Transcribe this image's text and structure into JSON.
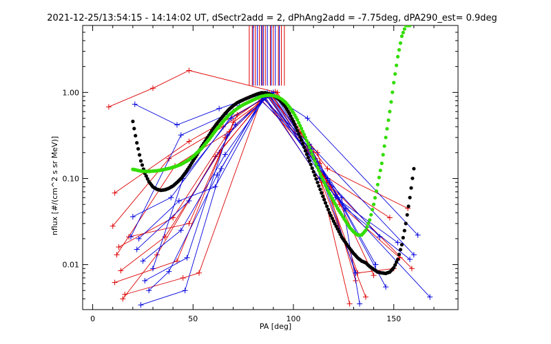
{
  "chart_data": {
    "type": "line",
    "title": "2021-12-25/13:54:15 - 14:14:02 UT, dSectr2add = 2, dPhAng2add = -7.75deg, dPA290_est=   0.9deg",
    "xlabel": "PA [deg]",
    "ylabel": "nflux [#/(cm^2 s sr MeV)]",
    "xlim": [
      -5,
      182
    ],
    "ylim": [
      0.003,
      6.0
    ],
    "yscale": "log",
    "grid": false,
    "x_ticks": [
      {
        "v": 0,
        "label": "0"
      },
      {
        "v": 50,
        "label": "50"
      },
      {
        "v": 100,
        "label": "100"
      },
      {
        "v": 150,
        "label": "150"
      }
    ],
    "y_ticks": [
      {
        "v": 0.01,
        "label": "0.01"
      },
      {
        "v": 0.1,
        "label": "0.10"
      },
      {
        "v": 1.0,
        "label": "1.00"
      }
    ],
    "colors": {
      "red": "#dd0000",
      "blue": "#0000dd",
      "black": "#000000",
      "green": "#33dd00"
    },
    "vertical_lines": {
      "y_from": 1.2,
      "red_x": [
        78.0,
        79.5,
        81.0,
        83.0,
        84.5,
        86.0,
        88.5,
        90.0,
        92.5,
        94.0,
        95.5
      ],
      "blue_x": [
        80.0,
        82.0,
        84.0,
        85.0,
        87.0,
        89.0,
        91.0,
        93.0
      ]
    },
    "series": [
      {
        "color": "red",
        "x": [
          8,
          30,
          48,
          92,
          113
        ],
        "y": [
          0.68,
          1.12,
          1.8,
          1.0,
          0.15
        ]
      },
      {
        "color": "red",
        "x": [
          11,
          48,
          88,
          112,
          131
        ],
        "y": [
          0.068,
          0.27,
          0.92,
          0.2,
          0.0065
        ]
      },
      {
        "color": "red",
        "x": [
          10,
          38,
          65,
          88,
          117,
          157
        ],
        "y": [
          0.028,
          0.17,
          0.4,
          0.98,
          0.13,
          0.045
        ]
      },
      {
        "color": "red",
        "x": [
          13,
          40,
          66,
          87,
          115,
          148
        ],
        "y": [
          0.016,
          0.035,
          0.3,
          0.92,
          0.11,
          0.035
        ]
      },
      {
        "color": "red",
        "x": [
          14,
          36,
          63,
          85,
          110,
          132,
          150
        ],
        "y": [
          0.0085,
          0.021,
          0.2,
          0.85,
          0.2,
          0.008,
          0.009
        ]
      },
      {
        "color": "red",
        "x": [
          11,
          42,
          70,
          89,
          121,
          140
        ],
        "y": [
          0.0062,
          0.011,
          0.45,
          0.95,
          0.065,
          0.0075
        ]
      },
      {
        "color": "red",
        "x": [
          15,
          32,
          61,
          86,
          114,
          136
        ],
        "y": [
          0.004,
          0.013,
          0.18,
          0.88,
          0.09,
          0.0042
        ]
      },
      {
        "color": "red",
        "x": [
          16,
          45,
          53,
          84,
          111,
          128
        ],
        "y": [
          0.0045,
          0.007,
          0.008,
          0.82,
          0.17,
          0.0035
        ]
      },
      {
        "color": "red",
        "x": [
          18,
          48,
          72,
          91,
          123,
          153
        ],
        "y": [
          0.021,
          0.03,
          0.55,
          1.02,
          0.05,
          0.012
        ]
      },
      {
        "color": "red",
        "x": [
          12,
          41,
          68,
          87,
          119,
          159
        ],
        "y": [
          0.013,
          0.14,
          0.35,
          0.96,
          0.08,
          0.009
        ]
      },
      {
        "color": "blue",
        "x": [
          21,
          42,
          63,
          87,
          107,
          162
        ],
        "y": [
          0.73,
          0.42,
          0.65,
          1.0,
          0.5,
          0.022
        ]
      },
      {
        "color": "blue",
        "x": [
          19,
          44,
          70,
          86,
          118,
          143
        ],
        "y": [
          0.021,
          0.32,
          0.6,
          0.97,
          0.09,
          0.021
        ]
      },
      {
        "color": "blue",
        "x": [
          22,
          48,
          71,
          88,
          121,
          152
        ],
        "y": [
          0.015,
          0.055,
          0.42,
          0.92,
          0.06,
          0.018
        ]
      },
      {
        "color": "blue",
        "x": [
          25,
          44,
          66,
          86,
          112,
          131
        ],
        "y": [
          0.011,
          0.025,
          0.19,
          0.86,
          0.14,
          0.008
        ]
      },
      {
        "color": "blue",
        "x": [
          28,
          38,
          62,
          84,
          109,
          146
        ],
        "y": [
          0.005,
          0.0083,
          0.11,
          0.8,
          0.22,
          0.0055
        ]
      },
      {
        "color": "blue",
        "x": [
          24,
          46,
          64,
          85,
          113,
          168
        ],
        "y": [
          0.0034,
          0.005,
          0.13,
          0.9,
          0.1,
          0.0042
        ]
      },
      {
        "color": "blue",
        "x": [
          20,
          39,
          73,
          90,
          126,
          158
        ],
        "y": [
          0.036,
          0.06,
          0.7,
          1.0,
          0.045,
          0.0115
        ]
      },
      {
        "color": "blue",
        "x": [
          26,
          47,
          67,
          88,
          117,
          141
        ],
        "y": [
          0.0065,
          0.012,
          0.32,
          0.95,
          0.1,
          0.01
        ]
      },
      {
        "color": "blue",
        "x": [
          30,
          45,
          69,
          89,
          124,
          133
        ],
        "y": [
          0.009,
          0.1,
          0.5,
          0.98,
          0.06,
          0.0035
        ]
      },
      {
        "color": "blue",
        "x": [
          23,
          43,
          61,
          85,
          108,
          160
        ],
        "y": [
          0.02,
          0.055,
          0.08,
          0.85,
          0.25,
          0.013
        ]
      }
    ],
    "fit_black": {
      "x": [
        20,
        22,
        24,
        26,
        28,
        30,
        32,
        34,
        36,
        38,
        40,
        42,
        44,
        46,
        48,
        50,
        52,
        54,
        56,
        58,
        60,
        62,
        64,
        66,
        68,
        70,
        72,
        74,
        76,
        78,
        80,
        82,
        84,
        86,
        88,
        90,
        92,
        94,
        96,
        98,
        100,
        102,
        104,
        106,
        108,
        110,
        112,
        114,
        116,
        118,
        120,
        122,
        124,
        126,
        128,
        130,
        132,
        134,
        136,
        138,
        140,
        142,
        144,
        146,
        148,
        150,
        152,
        154,
        156,
        158,
        160
      ],
      "y": [
        0.46,
        0.26,
        0.16,
        0.115,
        0.092,
        0.08,
        0.075,
        0.073,
        0.074,
        0.077,
        0.082,
        0.09,
        0.1,
        0.115,
        0.135,
        0.16,
        0.19,
        0.23,
        0.27,
        0.32,
        0.38,
        0.44,
        0.5,
        0.57,
        0.64,
        0.7,
        0.76,
        0.8,
        0.84,
        0.88,
        0.92,
        0.96,
        0.99,
        0.99,
        0.96,
        0.92,
        0.86,
        0.78,
        0.68,
        0.57,
        0.46,
        0.36,
        0.28,
        0.21,
        0.16,
        0.12,
        0.09,
        0.068,
        0.052,
        0.04,
        0.032,
        0.026,
        0.021,
        0.018,
        0.0155,
        0.0135,
        0.012,
        0.011,
        0.0105,
        0.0095,
        0.0088,
        0.0082,
        0.008,
        0.0079,
        0.0082,
        0.0092,
        0.0115,
        0.017,
        0.03,
        0.06,
        0.13
      ]
    },
    "fit_green": {
      "x": [
        20,
        22,
        24,
        26,
        28,
        30,
        32,
        34,
        36,
        38,
        40,
        42,
        44,
        46,
        48,
        50,
        52,
        54,
        56,
        58,
        60,
        62,
        64,
        66,
        68,
        70,
        72,
        74,
        76,
        78,
        80,
        82,
        84,
        86,
        88,
        90,
        92,
        94,
        96,
        98,
        100,
        102,
        104,
        106,
        108,
        110,
        112,
        114,
        116,
        118,
        120,
        122,
        124,
        126,
        128,
        130,
        132,
        134,
        136,
        138,
        140,
        142,
        144,
        146,
        148,
        150,
        152,
        154,
        156,
        158
      ],
      "y": [
        0.128,
        0.125,
        0.122,
        0.121,
        0.121,
        0.122,
        0.123,
        0.125,
        0.128,
        0.131,
        0.135,
        0.14,
        0.146,
        0.155,
        0.165,
        0.18,
        0.2,
        0.22,
        0.25,
        0.285,
        0.33,
        0.38,
        0.43,
        0.49,
        0.55,
        0.6,
        0.65,
        0.7,
        0.74,
        0.78,
        0.82,
        0.86,
        0.9,
        0.92,
        0.93,
        0.92,
        0.89,
        0.84,
        0.77,
        0.68,
        0.58,
        0.48,
        0.38,
        0.3,
        0.23,
        0.175,
        0.135,
        0.105,
        0.083,
        0.067,
        0.055,
        0.045,
        0.038,
        0.032,
        0.027,
        0.024,
        0.022,
        0.022,
        0.025,
        0.033,
        0.05,
        0.085,
        0.15,
        0.3,
        0.6,
        1.3,
        2.6,
        4.5,
        6.0,
        6.0
      ]
    }
  }
}
